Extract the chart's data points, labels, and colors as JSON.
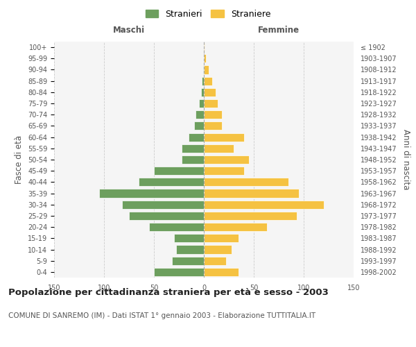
{
  "age_groups": [
    "0-4",
    "5-9",
    "10-14",
    "15-19",
    "20-24",
    "25-29",
    "30-34",
    "35-39",
    "40-44",
    "45-49",
    "50-54",
    "55-59",
    "60-64",
    "65-69",
    "70-74",
    "75-79",
    "80-84",
    "85-89",
    "90-94",
    "95-99",
    "100+"
  ],
  "birth_years": [
    "1998-2002",
    "1993-1997",
    "1988-1992",
    "1983-1987",
    "1978-1982",
    "1973-1977",
    "1968-1972",
    "1963-1967",
    "1958-1962",
    "1953-1957",
    "1948-1952",
    "1943-1947",
    "1938-1942",
    "1933-1937",
    "1928-1932",
    "1923-1927",
    "1918-1922",
    "1913-1917",
    "1908-1912",
    "1903-1907",
    "≤ 1902"
  ],
  "maschi": [
    50,
    32,
    28,
    30,
    55,
    75,
    82,
    105,
    65,
    50,
    22,
    22,
    15,
    10,
    8,
    5,
    3,
    2,
    1,
    0,
    0
  ],
  "femmine": [
    35,
    22,
    28,
    35,
    63,
    93,
    120,
    95,
    85,
    40,
    45,
    30,
    40,
    18,
    18,
    14,
    12,
    8,
    5,
    2,
    1
  ],
  "maschi_color": "#6d9f5e",
  "femmine_color": "#f5c242",
  "background_color": "#ffffff",
  "plot_bg_color": "#f5f5f5",
  "grid_color": "#cccccc",
  "title": "Popolazione per cittadinanza straniera per età e sesso - 2003",
  "subtitle": "COMUNE DI SANREMO (IM) - Dati ISTAT 1° gennaio 2003 - Elaborazione TUTTITALIA.IT",
  "xlabel_left": "Maschi",
  "xlabel_right": "Femmine",
  "ylabel_left": "Fasce di età",
  "ylabel_right": "Anni di nascita",
  "legend_stranieri": "Stranieri",
  "legend_straniere": "Straniere",
  "xlim": 150,
  "title_fontsize": 9.5,
  "subtitle_fontsize": 7.5,
  "tick_fontsize": 7,
  "label_fontsize": 8.5
}
